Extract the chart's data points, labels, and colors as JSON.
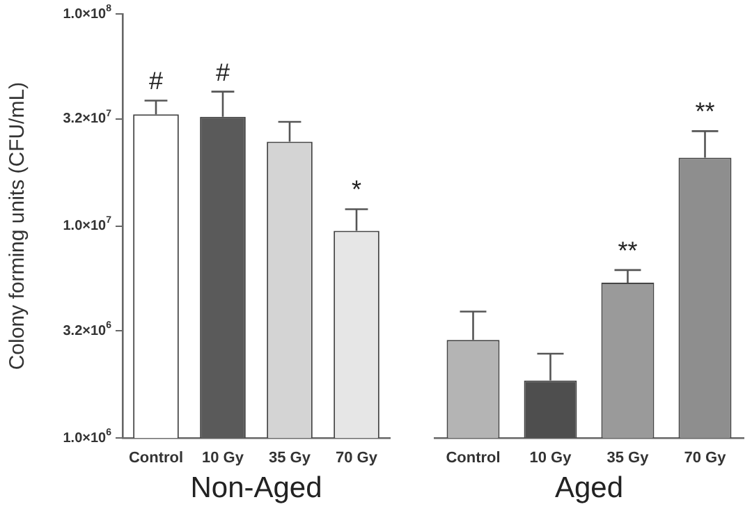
{
  "chart_data": [
    {
      "type": "bar",
      "ylabel": "Colony forming units (CFU/mL)",
      "xlabel": "Non-Aged",
      "categories": [
        "Control",
        "10 Gy",
        "35 Gy",
        "70 Gy"
      ],
      "values": [
        33600000,
        32700000,
        25000000,
        9500000
      ],
      "errors": [
        [
          33600000,
          39000000
        ],
        [
          32700000,
          43000000
        ],
        [
          25000000,
          31000000
        ],
        [
          9500000,
          12000000
        ]
      ],
      "colors": [
        "#ffffff",
        "#5a5a5a",
        "#d4d4d4",
        "#e6e6e6"
      ],
      "log": true,
      "ylim": [
        1000000,
        100000000
      ],
      "yticks": [
        {
          "value": 1000000,
          "label": "1.0×10$^{6}$"
        },
        {
          "value": 3200000,
          "label": "3.2×10$^{6}$"
        },
        {
          "value": 10000000,
          "label": "1.0×10$^{7}$"
        },
        {
          "value": 32000000,
          "label": "3.2×10$^{7}$"
        },
        {
          "value": 100000000,
          "label": "1.0×10$^{8}$"
        }
      ],
      "grid": false,
      "legend": false,
      "annotations": [
        {
          "text": "#",
          "x": "Control",
          "y": 39000000
        },
        {
          "text": "#",
          "x": "10 Gy",
          "y": 43000000
        },
        {
          "text": "*",
          "x": "70 Gy",
          "y": 12000000
        }
      ]
    },
    {
      "type": "bar",
      "xlabel": "Aged",
      "categories": [
        "Control",
        "10 Gy",
        "35 Gy",
        "70 Gy"
      ],
      "values": [
        2900000,
        1870000,
        5400000,
        21000000
      ],
      "errors": [
        [
          2900000,
          3950000
        ],
        [
          1870000,
          2500000
        ],
        [
          5400000,
          6200000
        ],
        [
          21000000,
          28000000
        ]
      ],
      "colors": [
        "#b4b4b4",
        "#4e4e4e",
        "#9a9a9a",
        "#8e8e8e"
      ],
      "log": true,
      "ylim": [
        1000000,
        100000000
      ],
      "tick_labels": "x",
      "grid": false,
      "legend": false,
      "annotations": [
        {
          "text": "**",
          "x": "35 Gy",
          "y": 6200000
        },
        {
          "text": "**",
          "x": "70 Gy",
          "y": 28000000
        }
      ]
    }
  ]
}
